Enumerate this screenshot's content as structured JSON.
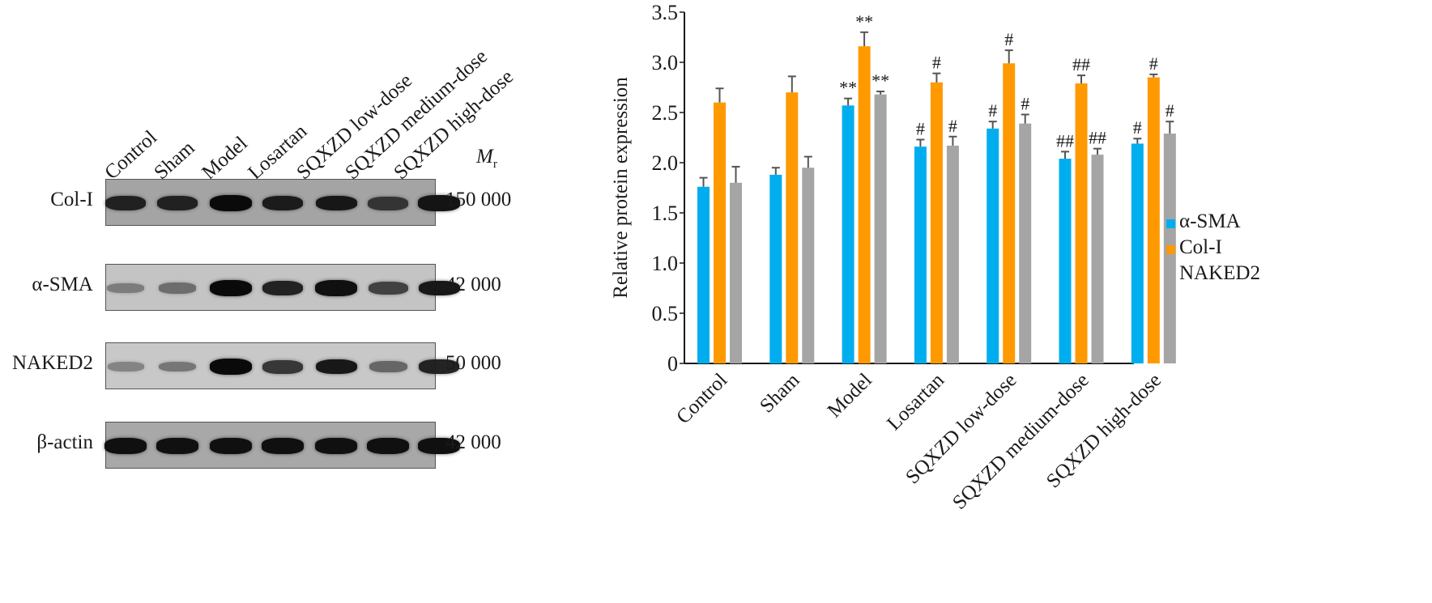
{
  "blot": {
    "lanes": [
      "Control",
      "Sham",
      "Model",
      "Losartan",
      "SQXZD low-dose",
      "SQXZD medium-dose",
      "SQXZD high-dose"
    ],
    "mr_label": "M",
    "mr_sub": "r",
    "rows": [
      {
        "protein": "Col-I",
        "mw": "150 000",
        "background": "#a4a4a4",
        "band_intensity": [
          0.85,
          0.85,
          1.0,
          0.88,
          0.9,
          0.75,
          0.92
        ]
      },
      {
        "protein": "α-SMA",
        "mw": "42 000",
        "background": "#c4c4c4",
        "band_intensity": [
          0.35,
          0.45,
          1.0,
          0.85,
          0.95,
          0.7,
          0.9
        ]
      },
      {
        "protein": "NAKED2",
        "mw": "50 000",
        "background": "#c8c8c8",
        "band_intensity": [
          0.3,
          0.4,
          1.0,
          0.75,
          0.9,
          0.5,
          0.85
        ]
      },
      {
        "protein": "β-actin",
        "mw": "42 000",
        "background": "#a8a8a8",
        "band_intensity": [
          0.95,
          0.95,
          0.95,
          0.95,
          0.95,
          0.95,
          0.95
        ]
      }
    ]
  },
  "chart_data": {
    "type": "bar",
    "title": "",
    "xlabel": "",
    "ylabel": "Relative protein expression",
    "ylim": [
      0,
      3.5
    ],
    "yticks": [
      0,
      0.5,
      1.0,
      1.5,
      2.0,
      2.5,
      3.0,
      3.5
    ],
    "ytick_labels": [
      "0",
      "0.5",
      "1.0",
      "1.5",
      "2.0",
      "2.5",
      "3.0",
      "3.5"
    ],
    "grid": false,
    "legend_position": "right",
    "categories": [
      "Control",
      "Sham",
      "Model",
      "Losartan",
      "SQXZD low-dose",
      "SQXZD medium-dose",
      "SQXZD high-dose"
    ],
    "series": [
      {
        "name": "α-SMA",
        "color": "#00aeef",
        "values": [
          1.76,
          1.88,
          2.57,
          2.16,
          2.34,
          2.04,
          2.19
        ],
        "error_upper": [
          1.85,
          1.95,
          2.64,
          2.23,
          2.41,
          2.11,
          2.24
        ],
        "annotations": [
          "",
          "",
          "**",
          "#",
          "#",
          "##",
          "#"
        ]
      },
      {
        "name": "Col-I",
        "color": "#ff9900",
        "values": [
          2.6,
          2.7,
          3.16,
          2.8,
          2.99,
          2.79,
          2.85
        ],
        "error_upper": [
          2.74,
          2.86,
          3.3,
          2.89,
          3.12,
          2.87,
          2.88
        ],
        "annotations": [
          "",
          "",
          "**",
          "#",
          "#",
          "##",
          "#"
        ]
      },
      {
        "name": "NAKED2",
        "color": "#a5a5a5",
        "values": [
          1.8,
          1.95,
          2.68,
          2.17,
          2.39,
          2.08,
          2.29
        ],
        "error_upper": [
          1.96,
          2.06,
          2.71,
          2.26,
          2.48,
          2.14,
          2.41
        ],
        "annotations": [
          "",
          "",
          "**",
          "#",
          "#",
          "##",
          "#"
        ]
      }
    ]
  }
}
